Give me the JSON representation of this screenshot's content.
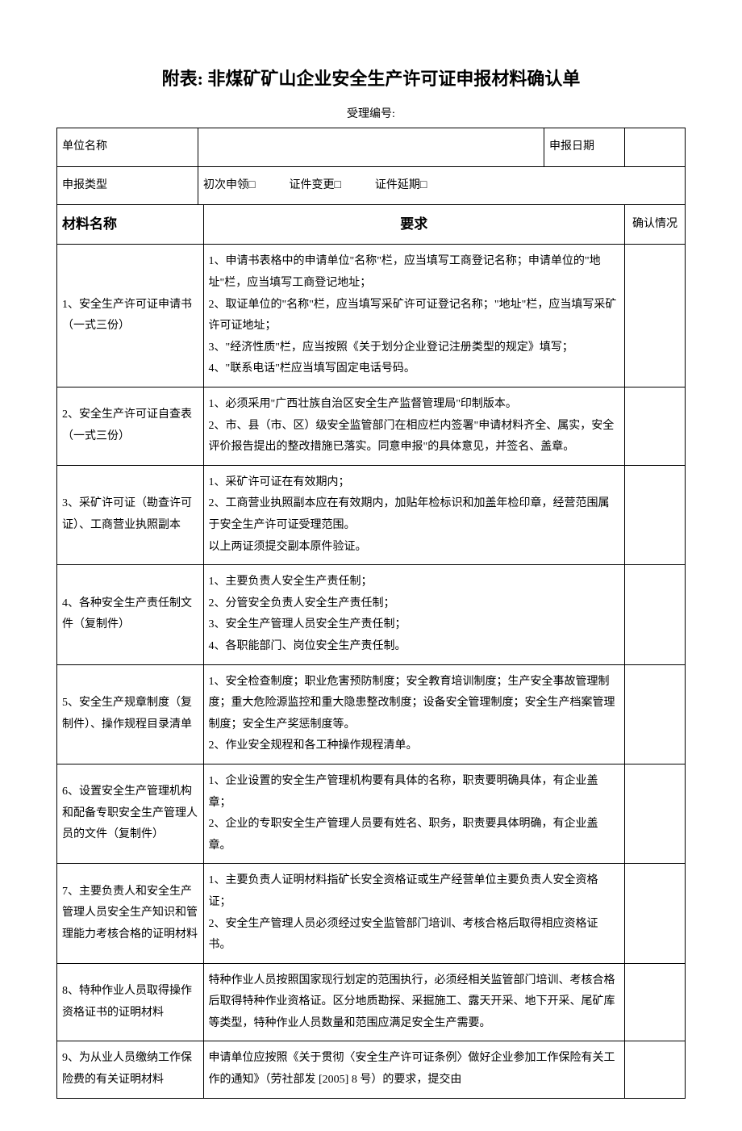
{
  "title": "附表: 非煤矿矿山企业安全生产许可证申报材料确认单",
  "subtitle": "受理编号:",
  "header": {
    "unitNameLabel": "单位名称",
    "declareDateLabel": "申报日期",
    "declareTypeLabel": "申报类型",
    "declareTypeOptions": "初次申领□　　　证件变更□　　　证件延期□"
  },
  "columns": {
    "materialName": "材料名称",
    "requirement": "要求",
    "confirm": "确认情况"
  },
  "rows": [
    {
      "name": "1、安全生产许可证申请书（一式三份）",
      "req": "1、申请书表格中的申请单位\"名称\"栏，应当填写工商登记名称；申请单位的\"地址\"栏，应当填写工商登记地址；\n2、取证单位的\"名称\"栏，应当填写采矿许可证登记名称；\"地址\"栏，应当填写采矿许可证地址；\n3、\"经济性质\"栏，应当按照《关于划分企业登记注册类型的规定》填写；\n4、\"联系电话\"栏应当填写固定电话号码。"
    },
    {
      "name": "2、安全生产许可证自查表（一式三份）",
      "req": "1、必须采用\"广西壮族自治区安全生产监督管理局\"印制版本。\n2、市、县（市、区）级安全监管部门在相应栏内签署\"申请材料齐全、属实，安全评价报告提出的整改措施已落实。同意申报\"的具体意见，并签名、盖章。"
    },
    {
      "name": "3、采矿许可证（勘查许可证）、工商营业执照副本",
      "req": "1、采矿许可证在有效期内；\n2、工商营业执照副本应在有效期内，加贴年检标识和加盖年检印章，经营范围属于安全生产许可证受理范围。\n以上两证须提交副本原件验证。"
    },
    {
      "name": "4、各种安全生产责任制文件（复制件）",
      "req": "1、主要负责人安全生产责任制；\n2、分管安全负责人安全生产责任制；\n3、安全生产管理人员安全生产责任制；\n4、各职能部门、岗位安全生产责任制。"
    },
    {
      "name": "5、安全生产规章制度（复制件）、操作规程目录清单",
      "req": "1、安全检查制度；职业危害预防制度；安全教育培训制度；生产安全事故管理制度；重大危险源监控和重大隐患整改制度；设备安全管理制度；安全生产档案管理制度；安全生产奖惩制度等。\n2、作业安全规程和各工种操作规程清单。"
    },
    {
      "name": "6、设置安全生产管理机构和配备专职安全生产管理人员的文件（复制件）",
      "req": "1、企业设置的安全生产管理机构要有具体的名称，职责要明确具体，有企业盖章；\n2、企业的专职安全生产管理人员要有姓名、职务，职责要具体明确，有企业盖章。"
    },
    {
      "name": "7、主要负责人和安全生产管理人员安全生产知识和管理能力考核合格的证明材料",
      "req": "1、主要负责人证明材料指矿长安全资格证或生产经营单位主要负责人安全资格证；\n2、安全生产管理人员必须经过安全监管部门培训、考核合格后取得相应资格证书。"
    },
    {
      "name": "8、特种作业人员取得操作资格证书的证明材料",
      "req": "特种作业人员按照国家现行划定的范围执行，必须经相关监管部门培训、考核合格后取得特种作业资格证。区分地质勘探、采掘施工、露天开采、地下开采、尾矿库等类型，特种作业人员数量和范围应满足安全生产需要。"
    },
    {
      "name": "9、为从业人员缴纳工作保险费的有关证明材料",
      "req": "申请单位应按照《关于贯彻〈安全生产许可证条例〉做好企业参加工作保险有关工作的通知》（劳社部发 [2005] 8 号）的要求，提交由"
    }
  ]
}
